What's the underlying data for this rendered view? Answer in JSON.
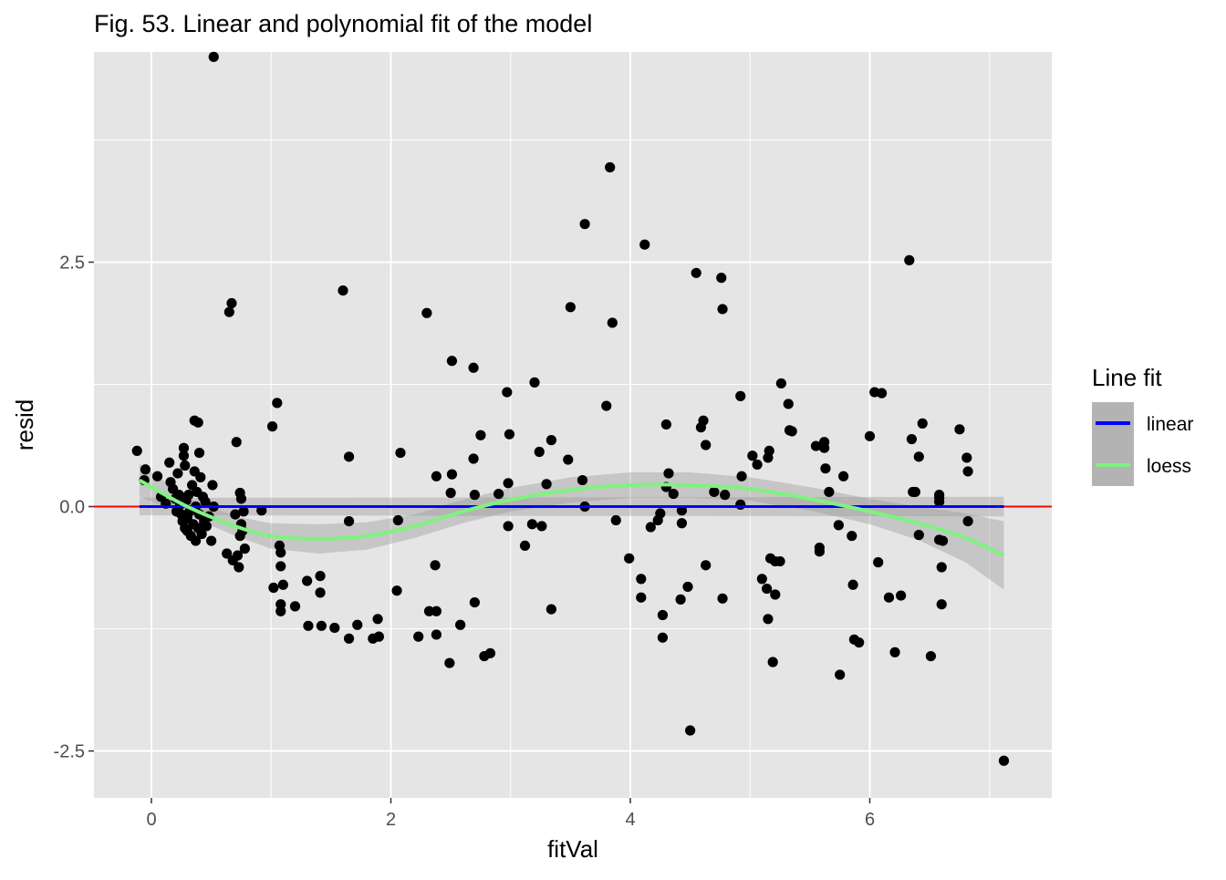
{
  "chart_data": {
    "type": "scatter",
    "title": "Fig. 53. Linear and polynomial fit of the model",
    "xlabel": "fitVal",
    "ylabel": "resid",
    "xlim": [
      -0.48,
      7.52
    ],
    "ylim": [
      -2.98,
      4.65
    ],
    "x_ticks": [
      0,
      2,
      4,
      6
    ],
    "x_tick_labels": [
      "0",
      "2",
      "4",
      "6"
    ],
    "y_ticks": [
      -2.5,
      0.0,
      2.5
    ],
    "y_tick_labels": [
      "-2.5",
      "0.0",
      "2.5"
    ],
    "grid": true,
    "legend": {
      "title": "Line fit",
      "position": "right",
      "items": [
        {
          "label": "linear",
          "color": "#0000ff"
        },
        {
          "label": "loess",
          "color": "#7ff27f"
        }
      ]
    },
    "colors": {
      "panel": "#e5e5e5",
      "gridline": "#ffffff",
      "points": "#000000",
      "reference_line": "#ff0000",
      "confidence_band": "#999999"
    },
    "reference_line": {
      "y": 0,
      "color": "#ff0000"
    },
    "linear_fit": {
      "x": [
        -0.1,
        7.12
      ],
      "y": [
        0.0,
        0.0
      ],
      "band": [
        0.09,
        0.1
      ]
    },
    "loess_fit": {
      "x": [
        -0.1,
        0.3,
        0.7,
        1.0,
        1.4,
        1.8,
        2.2,
        2.6,
        3.0,
        3.5,
        4.0,
        4.5,
        5.0,
        5.5,
        6.0,
        6.4,
        6.8,
        7.12
      ],
      "y": [
        0.27,
        0.0,
        -0.2,
        -0.3,
        -0.33,
        -0.3,
        -0.2,
        -0.05,
        0.07,
        0.17,
        0.22,
        0.22,
        0.18,
        0.08,
        -0.05,
        -0.17,
        -0.32,
        -0.5
      ],
      "band_half_width": [
        0.17,
        0.09,
        0.1,
        0.13,
        0.15,
        0.14,
        0.12,
        0.12,
        0.12,
        0.13,
        0.13,
        0.13,
        0.12,
        0.12,
        0.13,
        0.17,
        0.25,
        0.35
      ]
    },
    "points": [
      {
        "x": -0.12,
        "y": 0.57
      },
      {
        "x": -0.05,
        "y": 0.38
      },
      {
        "x": -0.06,
        "y": 0.27
      },
      {
        "x": 0.05,
        "y": 0.31
      },
      {
        "x": 0.08,
        "y": 0.1
      },
      {
        "x": 0.12,
        "y": 0.03
      },
      {
        "x": 0.15,
        "y": 0.45
      },
      {
        "x": 0.16,
        "y": 0.25
      },
      {
        "x": 0.18,
        "y": 0.18
      },
      {
        "x": 0.2,
        "y": 0.08
      },
      {
        "x": 0.21,
        "y": -0.05
      },
      {
        "x": 0.22,
        "y": 0.34
      },
      {
        "x": 0.23,
        "y": 0.12
      },
      {
        "x": 0.24,
        "y": 0.02
      },
      {
        "x": 0.25,
        "y": -0.08
      },
      {
        "x": 0.26,
        "y": -0.15
      },
      {
        "x": 0.27,
        "y": 0.52
      },
      {
        "x": 0.27,
        "y": 0.6
      },
      {
        "x": 0.28,
        "y": 0.42
      },
      {
        "x": 0.28,
        "y": -0.22
      },
      {
        "x": 0.29,
        "y": 0.06
      },
      {
        "x": 0.3,
        "y": -0.12
      },
      {
        "x": 0.3,
        "y": -0.25
      },
      {
        "x": 0.31,
        "y": 0.12
      },
      {
        "x": 0.32,
        "y": -0.05
      },
      {
        "x": 0.33,
        "y": -0.3
      },
      {
        "x": 0.34,
        "y": 0.22
      },
      {
        "x": 0.35,
        "y": -0.18
      },
      {
        "x": 0.36,
        "y": 0.88
      },
      {
        "x": 0.36,
        "y": 0.36
      },
      {
        "x": 0.37,
        "y": 0.0
      },
      {
        "x": 0.37,
        "y": -0.35
      },
      {
        "x": 0.38,
        "y": 0.15
      },
      {
        "x": 0.39,
        "y": -0.22
      },
      {
        "x": 0.39,
        "y": 0.86
      },
      {
        "x": 0.4,
        "y": 0.55
      },
      {
        "x": 0.4,
        "y": -0.08
      },
      {
        "x": 0.41,
        "y": 0.3
      },
      {
        "x": 0.42,
        "y": -0.28
      },
      {
        "x": 0.43,
        "y": 0.1
      },
      {
        "x": 0.44,
        "y": -0.15
      },
      {
        "x": 0.45,
        "y": 0.05
      },
      {
        "x": 0.46,
        "y": -0.2
      },
      {
        "x": 0.48,
        "y": -0.1
      },
      {
        "x": 0.5,
        "y": -0.35
      },
      {
        "x": 0.51,
        "y": 0.22
      },
      {
        "x": 0.52,
        "y": 0.0
      },
      {
        "x": 0.52,
        "y": 4.6
      },
      {
        "x": 0.63,
        "y": -0.48
      },
      {
        "x": 0.65,
        "y": 1.99
      },
      {
        "x": 0.67,
        "y": 2.08
      },
      {
        "x": 0.68,
        "y": -0.55
      },
      {
        "x": 0.7,
        "y": -0.08
      },
      {
        "x": 0.71,
        "y": 0.66
      },
      {
        "x": 0.72,
        "y": -0.5
      },
      {
        "x": 0.73,
        "y": -0.62
      },
      {
        "x": 0.74,
        "y": 0.14
      },
      {
        "x": 0.74,
        "y": -0.3
      },
      {
        "x": 0.75,
        "y": 0.08
      },
      {
        "x": 0.75,
        "y": -0.18
      },
      {
        "x": 0.76,
        "y": -0.25
      },
      {
        "x": 0.77,
        "y": -0.05
      },
      {
        "x": 0.78,
        "y": -0.43
      },
      {
        "x": 0.92,
        "y": -0.04
      },
      {
        "x": 1.01,
        "y": 0.82
      },
      {
        "x": 1.02,
        "y": -0.83
      },
      {
        "x": 1.05,
        "y": 1.06
      },
      {
        "x": 1.07,
        "y": -0.4
      },
      {
        "x": 1.08,
        "y": -0.47
      },
      {
        "x": 1.08,
        "y": -0.61
      },
      {
        "x": 1.08,
        "y": -1.0
      },
      {
        "x": 1.08,
        "y": -1.07
      },
      {
        "x": 1.1,
        "y": -0.8
      },
      {
        "x": 1.2,
        "y": -1.02
      },
      {
        "x": 1.3,
        "y": -0.76
      },
      {
        "x": 1.31,
        "y": -1.22
      },
      {
        "x": 1.41,
        "y": -0.71
      },
      {
        "x": 1.41,
        "y": -0.88
      },
      {
        "x": 1.42,
        "y": -1.22
      },
      {
        "x": 1.53,
        "y": -1.24
      },
      {
        "x": 1.6,
        "y": 2.21
      },
      {
        "x": 1.65,
        "y": 0.51
      },
      {
        "x": 1.65,
        "y": -0.15
      },
      {
        "x": 1.65,
        "y": -1.35
      },
      {
        "x": 1.72,
        "y": -1.21
      },
      {
        "x": 1.85,
        "y": -1.35
      },
      {
        "x": 1.89,
        "y": -1.15
      },
      {
        "x": 1.9,
        "y": -1.33
      },
      {
        "x": 2.05,
        "y": -0.86
      },
      {
        "x": 2.06,
        "y": -0.14
      },
      {
        "x": 2.08,
        "y": 0.55
      },
      {
        "x": 2.23,
        "y": -1.33
      },
      {
        "x": 2.3,
        "y": 1.98
      },
      {
        "x": 2.32,
        "y": -1.07
      },
      {
        "x": 2.37,
        "y": -0.6
      },
      {
        "x": 2.38,
        "y": 0.31
      },
      {
        "x": 2.38,
        "y": -1.07
      },
      {
        "x": 2.38,
        "y": -1.31
      },
      {
        "x": 2.49,
        "y": -1.6
      },
      {
        "x": 2.5,
        "y": 0.14
      },
      {
        "x": 2.51,
        "y": 1.49
      },
      {
        "x": 2.51,
        "y": 0.33
      },
      {
        "x": 2.58,
        "y": -1.21
      },
      {
        "x": 2.69,
        "y": 1.42
      },
      {
        "x": 2.69,
        "y": 0.49
      },
      {
        "x": 2.7,
        "y": 0.12
      },
      {
        "x": 2.7,
        "y": -0.98
      },
      {
        "x": 2.75,
        "y": 0.73
      },
      {
        "x": 2.78,
        "y": -1.53
      },
      {
        "x": 2.83,
        "y": -1.5
      },
      {
        "x": 2.9,
        "y": 0.13
      },
      {
        "x": 2.97,
        "y": 1.17
      },
      {
        "x": 2.98,
        "y": 0.24
      },
      {
        "x": 2.98,
        "y": -0.2
      },
      {
        "x": 2.99,
        "y": 0.74
      },
      {
        "x": 3.12,
        "y": -0.4
      },
      {
        "x": 3.18,
        "y": -0.18
      },
      {
        "x": 3.2,
        "y": 1.27
      },
      {
        "x": 3.24,
        "y": 0.56
      },
      {
        "x": 3.26,
        "y": -0.2
      },
      {
        "x": 3.3,
        "y": 0.23
      },
      {
        "x": 3.34,
        "y": 0.68
      },
      {
        "x": 3.34,
        "y": -1.05
      },
      {
        "x": 3.48,
        "y": 0.48
      },
      {
        "x": 3.5,
        "y": 2.04
      },
      {
        "x": 3.6,
        "y": 0.27
      },
      {
        "x": 3.62,
        "y": 0.0
      },
      {
        "x": 3.62,
        "y": 2.89
      },
      {
        "x": 3.8,
        "y": 1.03
      },
      {
        "x": 3.83,
        "y": 3.47
      },
      {
        "x": 3.85,
        "y": 1.88
      },
      {
        "x": 3.88,
        "y": -0.14
      },
      {
        "x": 3.99,
        "y": -0.53
      },
      {
        "x": 4.09,
        "y": -0.74
      },
      {
        "x": 4.09,
        "y": -0.93
      },
      {
        "x": 4.12,
        "y": 2.68
      },
      {
        "x": 4.17,
        "y": -0.21
      },
      {
        "x": 4.23,
        "y": -0.14
      },
      {
        "x": 4.25,
        "y": -0.07
      },
      {
        "x": 4.27,
        "y": -1.11
      },
      {
        "x": 4.27,
        "y": -1.34
      },
      {
        "x": 4.3,
        "y": 0.84
      },
      {
        "x": 4.3,
        "y": 0.2
      },
      {
        "x": 4.32,
        "y": 0.34
      },
      {
        "x": 4.36,
        "y": 0.13
      },
      {
        "x": 4.42,
        "y": -0.95
      },
      {
        "x": 4.43,
        "y": -0.17
      },
      {
        "x": 4.43,
        "y": -0.04
      },
      {
        "x": 4.48,
        "y": -0.82
      },
      {
        "x": 4.5,
        "y": -2.29
      },
      {
        "x": 4.55,
        "y": 2.39
      },
      {
        "x": 4.59,
        "y": 0.81
      },
      {
        "x": 4.61,
        "y": 0.88
      },
      {
        "x": 4.63,
        "y": 0.63
      },
      {
        "x": 4.63,
        "y": -0.6
      },
      {
        "x": 4.7,
        "y": 0.15
      },
      {
        "x": 4.76,
        "y": 2.34
      },
      {
        "x": 4.77,
        "y": 2.02
      },
      {
        "x": 4.77,
        "y": -0.94
      },
      {
        "x": 4.79,
        "y": 0.12
      },
      {
        "x": 4.92,
        "y": 0.02
      },
      {
        "x": 4.92,
        "y": 1.13
      },
      {
        "x": 4.93,
        "y": 0.31
      },
      {
        "x": 5.02,
        "y": 0.52
      },
      {
        "x": 5.06,
        "y": 0.43
      },
      {
        "x": 5.1,
        "y": -0.74
      },
      {
        "x": 5.14,
        "y": -0.84
      },
      {
        "x": 5.15,
        "y": -1.15
      },
      {
        "x": 5.15,
        "y": 0.5
      },
      {
        "x": 5.16,
        "y": 0.57
      },
      {
        "x": 5.17,
        "y": -0.53
      },
      {
        "x": 5.19,
        "y": -1.59
      },
      {
        "x": 5.21,
        "y": -0.56
      },
      {
        "x": 5.21,
        "y": -0.9
      },
      {
        "x": 5.25,
        "y": -0.56
      },
      {
        "x": 5.26,
        "y": 1.26
      },
      {
        "x": 5.32,
        "y": 1.05
      },
      {
        "x": 5.33,
        "y": 0.78
      },
      {
        "x": 5.35,
        "y": 0.77
      },
      {
        "x": 5.55,
        "y": 0.62
      },
      {
        "x": 5.58,
        "y": -0.42
      },
      {
        "x": 5.58,
        "y": -0.46
      },
      {
        "x": 5.62,
        "y": 0.66
      },
      {
        "x": 5.62,
        "y": 0.6
      },
      {
        "x": 5.63,
        "y": 0.39
      },
      {
        "x": 5.66,
        "y": 0.15
      },
      {
        "x": 5.74,
        "y": -0.19
      },
      {
        "x": 5.75,
        "y": -1.72
      },
      {
        "x": 5.78,
        "y": 0.31
      },
      {
        "x": 5.85,
        "y": -0.3
      },
      {
        "x": 5.86,
        "y": -0.8
      },
      {
        "x": 5.87,
        "y": -1.36
      },
      {
        "x": 5.91,
        "y": -1.39
      },
      {
        "x": 6.0,
        "y": 0.72
      },
      {
        "x": 6.04,
        "y": 1.17
      },
      {
        "x": 6.07,
        "y": -0.57
      },
      {
        "x": 6.1,
        "y": 1.16
      },
      {
        "x": 6.16,
        "y": -0.93
      },
      {
        "x": 6.21,
        "y": -1.49
      },
      {
        "x": 6.26,
        "y": -0.91
      },
      {
        "x": 6.33,
        "y": 2.52
      },
      {
        "x": 6.35,
        "y": 0.69
      },
      {
        "x": 6.36,
        "y": 0.15
      },
      {
        "x": 6.38,
        "y": 0.15
      },
      {
        "x": 6.41,
        "y": 0.51
      },
      {
        "x": 6.41,
        "y": -0.29
      },
      {
        "x": 6.44,
        "y": 0.85
      },
      {
        "x": 6.51,
        "y": -1.53
      },
      {
        "x": 6.58,
        "y": 0.12
      },
      {
        "x": 6.58,
        "y": 0.09
      },
      {
        "x": 6.58,
        "y": 0.05
      },
      {
        "x": 6.58,
        "y": -0.34
      },
      {
        "x": 6.6,
        "y": -0.62
      },
      {
        "x": 6.6,
        "y": -1.0
      },
      {
        "x": 6.61,
        "y": -0.35
      },
      {
        "x": 6.75,
        "y": 0.79
      },
      {
        "x": 6.81,
        "y": 0.5
      },
      {
        "x": 6.82,
        "y": 0.36
      },
      {
        "x": 6.82,
        "y": -0.15
      },
      {
        "x": 7.12,
        "y": -2.6
      }
    ]
  }
}
